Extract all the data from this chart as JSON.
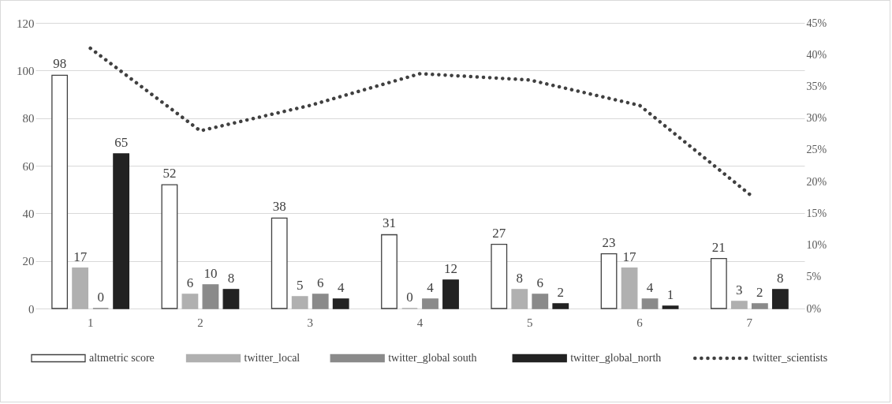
{
  "chart_data": {
    "type": "bar",
    "categories": [
      "1",
      "2",
      "3",
      "4",
      "5",
      "6",
      "7"
    ],
    "series": [
      {
        "name": "altmetric score",
        "color": "#ffffff",
        "values": [
          98,
          52,
          38,
          31,
          27,
          23,
          21
        ],
        "value_labels": [
          "98",
          "52",
          "38",
          "31",
          "27",
          "23",
          "21"
        ]
      },
      {
        "name": "twitter_local",
        "color": "#b0b0b0",
        "values": [
          17,
          6,
          5,
          0,
          8,
          17,
          3
        ],
        "value_labels": [
          "17",
          "6",
          "5",
          "0",
          "8",
          "17",
          "3"
        ]
      },
      {
        "name": "twitter_global south",
        "color": "#8a8a8a",
        "values": [
          0,
          10,
          6,
          4,
          6,
          4,
          2
        ],
        "value_labels": [
          "0",
          "10",
          "6",
          "4",
          "6",
          "4",
          "2"
        ]
      },
      {
        "name": "twitter_global_north",
        "color": "#222222",
        "values": [
          65,
          8,
          4,
          12,
          2,
          1,
          8
        ],
        "value_labels": [
          "65",
          "8",
          "4",
          "12",
          "2",
          "1",
          "8"
        ]
      },
      {
        "name": "twitter_scientists",
        "type": "line",
        "axis": "y2",
        "color": "#404040",
        "line_style": "dotted",
        "marker": "none",
        "values": [
          41,
          28,
          32,
          37,
          36,
          32,
          18
        ]
      }
    ],
    "ylim": [
      0,
      120
    ],
    "yticks": [
      0,
      20,
      40,
      60,
      80,
      100,
      120
    ],
    "y2lim": [
      0,
      45
    ],
    "y2ticks": [
      {
        "value": 0,
        "label": "0%"
      },
      {
        "value": 5,
        "label": "5%"
      },
      {
        "value": 10,
        "label": "10%"
      },
      {
        "value": 15,
        "label": "15%"
      },
      {
        "value": 20,
        "label": "20%"
      },
      {
        "value": 25,
        "label": "25%"
      },
      {
        "value": 30,
        "label": "30%"
      },
      {
        "value": 35,
        "label": "35%"
      },
      {
        "value": 40,
        "label": "40%"
      },
      {
        "value": 45,
        "label": "45%"
      }
    ],
    "grid": "y",
    "legend": "bottom"
  }
}
